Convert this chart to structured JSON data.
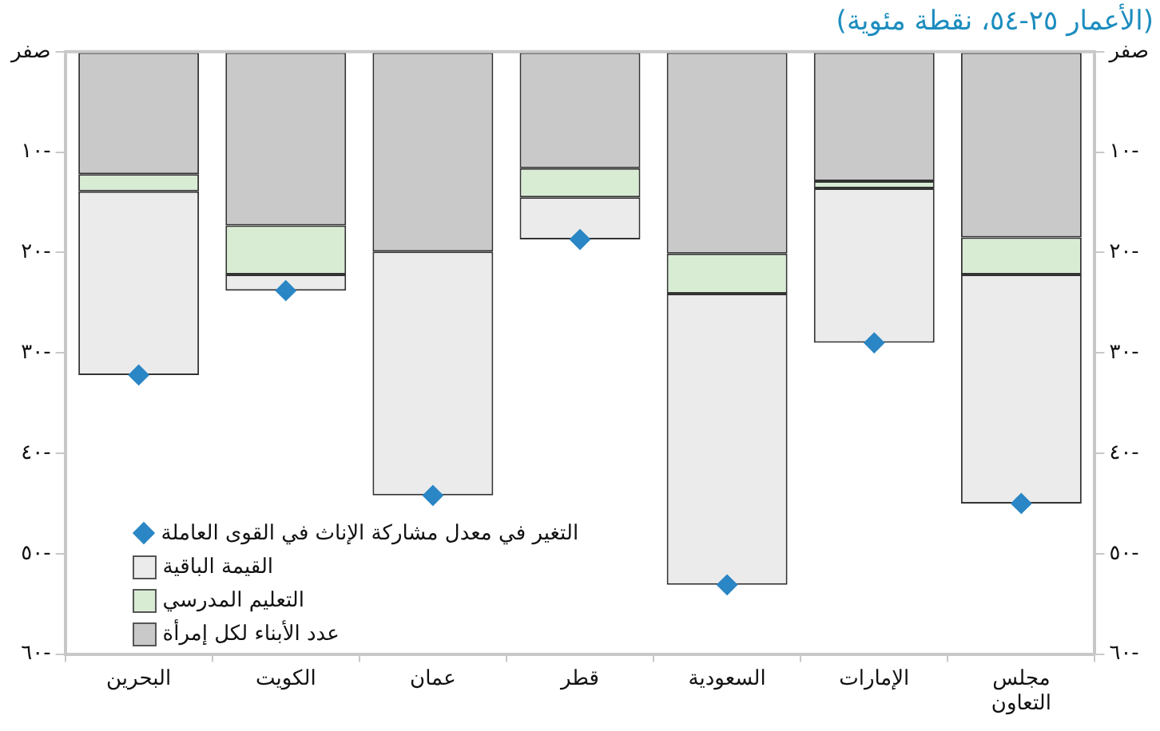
{
  "chart_data": {
    "type": "bar",
    "stacked": true,
    "title": "(الأعمار ٢٥-٥٤، نقطة مئوية)",
    "categories": [
      "البحرين",
      "الكويت",
      "عمان",
      "قطر",
      "السعودية",
      "الإمارات",
      "مجلس التعاون"
    ],
    "series": [
      {
        "name": "عدد الأبناء لكل إمرأة",
        "color": "#c9c9c9",
        "values": [
          -12.2,
          -17.3,
          -19.9,
          -11.6,
          -20.1,
          -12.9,
          -18.5
        ]
      },
      {
        "name": "التعليم المدرسي",
        "color": "#d8ecd4",
        "values": [
          -1.7,
          -4.9,
          0,
          -2.9,
          -4.0,
          -0.7,
          -3.7
        ]
      },
      {
        "name": "القيمة الباقية",
        "color": "#ebebeb",
        "values": [
          -18.3,
          -1.6,
          -24.3,
          -4.2,
          -29.0,
          -15.4,
          -22.8
        ]
      },
      {
        "name": "التغير في معدل مشاركة الإناث في القوى العاملة",
        "type": "scatter",
        "color": "#2b86c5",
        "marker": "diamond",
        "x": [
          "البحرين",
          "الكويت",
          "عمان",
          "قطر",
          "السعودية",
          "الإمارات",
          "مجلس التعاون"
        ],
        "values": [
          -32.2,
          -23.8,
          -44.2,
          -18.7,
          -53.1,
          -29.0,
          -45.0
        ]
      }
    ],
    "ylim": [
      -60,
      0
    ],
    "yticks": [
      {
        "value": 0,
        "label": "صفر"
      },
      {
        "value": -10,
        "label": "١٠-"
      },
      {
        "value": -20,
        "label": "٢٠-"
      },
      {
        "value": -30,
        "label": "٣٠-"
      },
      {
        "value": -40,
        "label": "٤٠-"
      },
      {
        "value": -50,
        "label": "٥٠-"
      },
      {
        "value": -60,
        "label": "٦٠-"
      }
    ],
    "y2lim": [
      -60,
      0
    ],
    "y2ticks": [
      {
        "value": 0,
        "label": "صفر"
      },
      {
        "value": -10,
        "label": "١٠-"
      },
      {
        "value": -20,
        "label": "٢٠-"
      },
      {
        "value": -30,
        "label": "٣٠-"
      },
      {
        "value": -40,
        "label": "٤٠-"
      },
      {
        "value": -50,
        "label": "٥٠-"
      },
      {
        "value": -60,
        "label": "٦٠-"
      }
    ],
    "legend": "bottom left"
  }
}
